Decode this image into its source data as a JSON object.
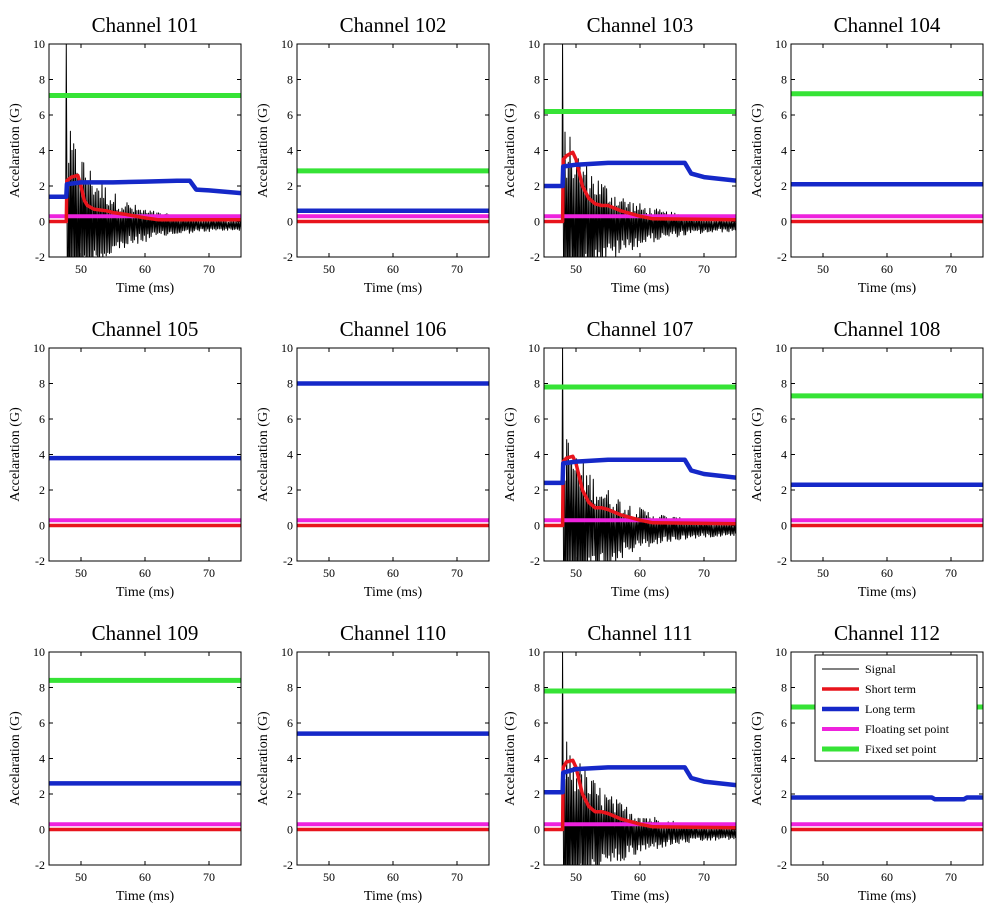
{
  "figure": {
    "colors": {
      "signal": "#000000",
      "short_term": "#e8141c",
      "long_term": "#1528c8",
      "floating": "#ee22dd",
      "fixed": "#36e336"
    }
  },
  "chart_data": [
    {
      "type": "line",
      "title": "Channel 101",
      "xlabel": "Time (ms)",
      "ylabel": "Accelaration (G)",
      "xlim": [
        45,
        75
      ],
      "ylim": [
        -2,
        10
      ],
      "xticks": [
        50,
        60,
        70
      ],
      "yticks": [
        -2,
        0,
        2,
        4,
        6,
        8,
        10
      ],
      "series": [
        {
          "name": "Signal",
          "kind": "signal",
          "onset": 47.6,
          "peak": 10,
          "decay": 6
        },
        {
          "name": "Short term",
          "x": [
            45,
            47.7,
            47.8,
            48.5,
            49.5,
            50,
            50.5,
            51,
            52,
            53,
            54,
            55,
            57,
            60,
            62,
            75
          ],
          "y": [
            0,
            0,
            2.3,
            2.5,
            2.6,
            2,
            1.2,
            0.9,
            0.7,
            0.65,
            0.6,
            0.5,
            0.4,
            0.2,
            0.1,
            0.1
          ]
        },
        {
          "name": "Long term",
          "x": [
            45,
            47.7,
            47.8,
            50,
            55,
            60,
            65,
            67,
            68,
            70,
            75
          ],
          "y": [
            1.4,
            1.4,
            2.1,
            2.2,
            2.2,
            2.25,
            2.3,
            2.3,
            1.8,
            1.75,
            1.6
          ]
        },
        {
          "name": "Floating set point",
          "x": [
            45,
            75
          ],
          "y": [
            0.3,
            0.3
          ]
        },
        {
          "name": "Fixed set point",
          "x": [
            45,
            75
          ],
          "y": [
            7.1,
            7.1
          ]
        }
      ]
    },
    {
      "type": "line",
      "title": "Channel 102",
      "xlabel": "Time (ms)",
      "ylabel": "Accelaration (G)",
      "xlim": [
        45,
        75
      ],
      "ylim": [
        -2,
        10
      ],
      "xticks": [
        50,
        60,
        70
      ],
      "yticks": [
        -2,
        0,
        2,
        4,
        6,
        8,
        10
      ],
      "series": [
        {
          "name": "Signal",
          "kind": "flat"
        },
        {
          "name": "Short term",
          "x": [
            45,
            75
          ],
          "y": [
            0,
            0
          ]
        },
        {
          "name": "Long term",
          "x": [
            45,
            75
          ],
          "y": [
            0.6,
            0.6
          ]
        },
        {
          "name": "Floating set point",
          "x": [
            45,
            75
          ],
          "y": [
            0.3,
            0.3
          ]
        },
        {
          "name": "Fixed set point",
          "x": [
            45,
            75
          ],
          "y": [
            2.85,
            2.85
          ]
        }
      ]
    },
    {
      "type": "line",
      "title": "Channel 103",
      "xlabel": "Time (ms)",
      "ylabel": "Accelaration (G)",
      "xlim": [
        45,
        75
      ],
      "ylim": [
        -2,
        10
      ],
      "xticks": [
        50,
        60,
        70
      ],
      "yticks": [
        -2,
        0,
        2,
        4,
        6,
        8,
        10
      ],
      "series": [
        {
          "name": "Signal",
          "kind": "signal",
          "onset": 47.8,
          "peak": 10,
          "decay": 7
        },
        {
          "name": "Short term",
          "x": [
            45,
            47.9,
            48,
            48.5,
            49.5,
            50,
            51,
            52,
            53,
            54,
            55,
            57,
            60,
            62,
            75
          ],
          "y": [
            0,
            0,
            3.5,
            3.7,
            3.9,
            3.5,
            2,
            1.3,
            1,
            0.9,
            0.9,
            0.6,
            0.3,
            0.15,
            0.1
          ]
        },
        {
          "name": "Long term",
          "x": [
            45,
            47.9,
            48,
            50,
            55,
            60,
            65,
            67,
            68,
            70,
            75
          ],
          "y": [
            2,
            2,
            3.1,
            3.2,
            3.3,
            3.3,
            3.3,
            3.3,
            2.7,
            2.5,
            2.3
          ]
        },
        {
          "name": "Floating set point",
          "x": [
            45,
            75
          ],
          "y": [
            0.3,
            0.3
          ]
        },
        {
          "name": "Fixed set point",
          "x": [
            45,
            75
          ],
          "y": [
            6.2,
            6.2
          ]
        }
      ]
    },
    {
      "type": "line",
      "title": "Channel 104",
      "xlabel": "Time (ms)",
      "ylabel": "Accelaration (G)",
      "xlim": [
        45,
        75
      ],
      "ylim": [
        -2,
        10
      ],
      "xticks": [
        50,
        60,
        70
      ],
      "yticks": [
        -2,
        0,
        2,
        4,
        6,
        8,
        10
      ],
      "series": [
        {
          "name": "Signal",
          "kind": "flat"
        },
        {
          "name": "Short term",
          "x": [
            45,
            75
          ],
          "y": [
            0,
            0
          ]
        },
        {
          "name": "Long term",
          "x": [
            45,
            75
          ],
          "y": [
            2.1,
            2.1
          ]
        },
        {
          "name": "Floating set point",
          "x": [
            45,
            75
          ],
          "y": [
            0.3,
            0.3
          ]
        },
        {
          "name": "Fixed set point",
          "x": [
            45,
            75
          ],
          "y": [
            7.2,
            7.2
          ]
        }
      ]
    },
    {
      "type": "line",
      "title": "Channel 105",
      "xlabel": "Time (ms)",
      "ylabel": "Accelaration (G)",
      "xlim": [
        45,
        75
      ],
      "ylim": [
        -2,
        10
      ],
      "xticks": [
        50,
        60,
        70
      ],
      "yticks": [
        -2,
        0,
        2,
        4,
        6,
        8,
        10
      ],
      "series": [
        {
          "name": "Signal",
          "kind": "flat"
        },
        {
          "name": "Short term",
          "x": [
            45,
            75
          ],
          "y": [
            0,
            0
          ]
        },
        {
          "name": "Long term",
          "x": [
            45,
            75
          ],
          "y": [
            3.8,
            3.8
          ]
        },
        {
          "name": "Floating set point",
          "x": [
            45,
            75
          ],
          "y": [
            0.3,
            0.3
          ]
        }
      ]
    },
    {
      "type": "line",
      "title": "Channel 106",
      "xlabel": "Time (ms)",
      "ylabel": "Accelaration (G)",
      "xlim": [
        45,
        75
      ],
      "ylim": [
        -2,
        10
      ],
      "xticks": [
        50,
        60,
        70
      ],
      "yticks": [
        -2,
        0,
        2,
        4,
        6,
        8,
        10
      ],
      "series": [
        {
          "name": "Signal",
          "kind": "flat"
        },
        {
          "name": "Short term",
          "x": [
            45,
            75
          ],
          "y": [
            0,
            0
          ]
        },
        {
          "name": "Long term",
          "x": [
            45,
            75
          ],
          "y": [
            8,
            8
          ]
        },
        {
          "name": "Floating set point",
          "x": [
            45,
            75
          ],
          "y": [
            0.3,
            0.3
          ]
        }
      ]
    },
    {
      "type": "line",
      "title": "Channel 107",
      "xlabel": "Time (ms)",
      "ylabel": "Accelaration (G)",
      "xlim": [
        45,
        75
      ],
      "ylim": [
        -2,
        10
      ],
      "xticks": [
        50,
        60,
        70
      ],
      "yticks": [
        -2,
        0,
        2,
        4,
        6,
        8,
        10
      ],
      "series": [
        {
          "name": "Signal",
          "kind": "signal",
          "onset": 47.8,
          "peak": 10,
          "decay": 7
        },
        {
          "name": "Short term",
          "x": [
            45,
            47.9,
            48,
            48.5,
            49.5,
            50,
            51,
            52,
            53,
            54,
            55,
            57,
            60,
            62,
            75
          ],
          "y": [
            0,
            0,
            3.6,
            3.8,
            3.9,
            3.5,
            2,
            1.3,
            1,
            1,
            0.9,
            0.6,
            0.3,
            0.15,
            0.1
          ]
        },
        {
          "name": "Long term",
          "x": [
            45,
            47.9,
            48,
            50,
            55,
            60,
            65,
            67,
            68,
            70,
            75
          ],
          "y": [
            2.4,
            2.4,
            3.5,
            3.6,
            3.7,
            3.7,
            3.7,
            3.7,
            3.1,
            2.9,
            2.7
          ]
        },
        {
          "name": "Floating set point",
          "x": [
            45,
            75
          ],
          "y": [
            0.3,
            0.3
          ]
        },
        {
          "name": "Fixed set point",
          "x": [
            45,
            75
          ],
          "y": [
            7.8,
            7.8
          ]
        }
      ]
    },
    {
      "type": "line",
      "title": "Channel 108",
      "xlabel": "Time (ms)",
      "ylabel": "Accelaration (G)",
      "xlim": [
        45,
        75
      ],
      "ylim": [
        -2,
        10
      ],
      "xticks": [
        50,
        60,
        70
      ],
      "yticks": [
        -2,
        0,
        2,
        4,
        6,
        8,
        10
      ],
      "series": [
        {
          "name": "Signal",
          "kind": "flat"
        },
        {
          "name": "Short term",
          "x": [
            45,
            75
          ],
          "y": [
            0,
            0
          ]
        },
        {
          "name": "Long term",
          "x": [
            45,
            75
          ],
          "y": [
            2.3,
            2.3
          ]
        },
        {
          "name": "Floating set point",
          "x": [
            45,
            75
          ],
          "y": [
            0.3,
            0.3
          ]
        },
        {
          "name": "Fixed set point",
          "x": [
            45,
            75
          ],
          "y": [
            7.3,
            7.3
          ]
        }
      ]
    },
    {
      "type": "line",
      "title": "Channel 109",
      "xlabel": "Time (ms)",
      "ylabel": "Accelaration (G)",
      "xlim": [
        45,
        75
      ],
      "ylim": [
        -2,
        10
      ],
      "xticks": [
        50,
        60,
        70
      ],
      "yticks": [
        -2,
        0,
        2,
        4,
        6,
        8,
        10
      ],
      "series": [
        {
          "name": "Signal",
          "kind": "flat"
        },
        {
          "name": "Short term",
          "x": [
            45,
            75
          ],
          "y": [
            0,
            0
          ]
        },
        {
          "name": "Long term",
          "x": [
            45,
            75
          ],
          "y": [
            2.6,
            2.6
          ]
        },
        {
          "name": "Floating set point",
          "x": [
            45,
            75
          ],
          "y": [
            0.3,
            0.3
          ]
        },
        {
          "name": "Fixed set point",
          "x": [
            45,
            75
          ],
          "y": [
            8.4,
            8.4
          ]
        }
      ]
    },
    {
      "type": "line",
      "title": "Channel 110",
      "xlabel": "Time (ms)",
      "ylabel": "Accelaration (G)",
      "xlim": [
        45,
        75
      ],
      "ylim": [
        -2,
        10
      ],
      "xticks": [
        50,
        60,
        70
      ],
      "yticks": [
        -2,
        0,
        2,
        4,
        6,
        8,
        10
      ],
      "series": [
        {
          "name": "Signal",
          "kind": "flat"
        },
        {
          "name": "Short term",
          "x": [
            45,
            75
          ],
          "y": [
            0,
            0
          ]
        },
        {
          "name": "Long term",
          "x": [
            45,
            75
          ],
          "y": [
            5.4,
            5.4
          ]
        },
        {
          "name": "Floating set point",
          "x": [
            45,
            75
          ],
          "y": [
            0.3,
            0.3
          ]
        }
      ]
    },
    {
      "type": "line",
      "title": "Channel 111",
      "xlabel": "Time (ms)",
      "ylabel": "Accelaration (G)",
      "xlim": [
        45,
        75
      ],
      "ylim": [
        -2,
        10
      ],
      "xticks": [
        50,
        60,
        70
      ],
      "yticks": [
        -2,
        0,
        2,
        4,
        6,
        8,
        10
      ],
      "series": [
        {
          "name": "Signal",
          "kind": "signal",
          "onset": 47.8,
          "peak": 10,
          "decay": 7
        },
        {
          "name": "Short term",
          "x": [
            45,
            47.9,
            48,
            48.5,
            49.5,
            50,
            51,
            52,
            53,
            54,
            55,
            57,
            60,
            62,
            75
          ],
          "y": [
            0,
            0,
            3.5,
            3.8,
            3.9,
            3.5,
            2,
            1.3,
            1,
            1,
            0.9,
            0.6,
            0.3,
            0.15,
            0.1
          ]
        },
        {
          "name": "Long term",
          "x": [
            45,
            47.9,
            48,
            50,
            55,
            60,
            65,
            67,
            68,
            70,
            75
          ],
          "y": [
            2.1,
            2.1,
            3.2,
            3.4,
            3.5,
            3.5,
            3.5,
            3.5,
            2.9,
            2.7,
            2.5
          ]
        },
        {
          "name": "Floating set point",
          "x": [
            45,
            75
          ],
          "y": [
            0.3,
            0.3
          ]
        },
        {
          "name": "Fixed set point",
          "x": [
            45,
            75
          ],
          "y": [
            7.8,
            7.8
          ]
        }
      ]
    },
    {
      "type": "line",
      "title": "Channel 112",
      "xlabel": "Time (ms)",
      "ylabel": "Accelaration (G)",
      "xlim": [
        45,
        75
      ],
      "ylim": [
        -2,
        10
      ],
      "xticks": [
        50,
        60,
        70
      ],
      "yticks": [
        -2,
        0,
        2,
        4,
        6,
        8,
        10
      ],
      "legend": {
        "position": "top-right",
        "entries": [
          "Signal",
          "Short term",
          "Long term",
          "Floating set point",
          "Fixed set point"
        ]
      },
      "series": [
        {
          "name": "Signal",
          "kind": "flat"
        },
        {
          "name": "Short term",
          "x": [
            45,
            75
          ],
          "y": [
            0,
            0
          ]
        },
        {
          "name": "Long term",
          "x": [
            45,
            67,
            67.5,
            72,
            72.5,
            75
          ],
          "y": [
            1.8,
            1.8,
            1.7,
            1.7,
            1.8,
            1.8
          ]
        },
        {
          "name": "Floating set point",
          "x": [
            45,
            75
          ],
          "y": [
            0.3,
            0.3
          ]
        },
        {
          "name": "Fixed set point",
          "x": [
            45,
            75
          ],
          "y": [
            6.9,
            6.9
          ]
        }
      ]
    }
  ]
}
